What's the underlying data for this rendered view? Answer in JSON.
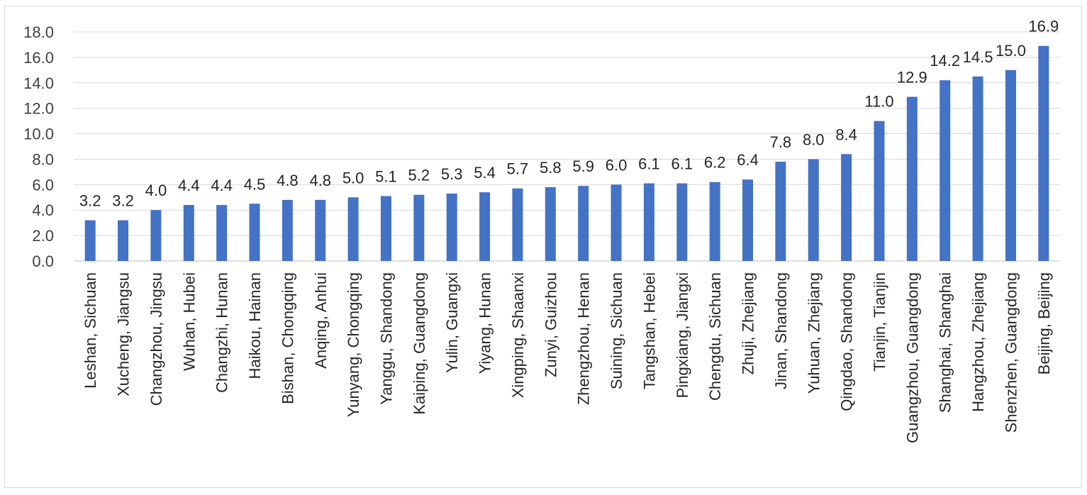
{
  "chart_data": {
    "type": "bar",
    "categories": [
      "Leshan, Sichuan",
      "Xucheng, Jiangsu",
      "Changzhou, Jingsu",
      "Wuhan, Hubei",
      "Changzhi, Hunan",
      "Haikou, Hainan",
      "Bishan, Chongqing",
      "Anqing, Anhui",
      "Yunyang, Chongqing",
      "Yanggu, Shandong",
      "Kaiping, Guangdong",
      "Yulin, Guangxi",
      "Yiyang, Hunan",
      "Xingping, Shaanxi",
      "Zunyi, Guizhou",
      "Zhengzhou, Henan",
      "Suining, Sichuan",
      "Tangshan, Hebei",
      "Pingxiang, Jiangxi",
      "Chengdu, Sichuan",
      "Zhuji, Zhejiang",
      "Jinan, Shandong",
      "Yuhuan, Zhejiang",
      "Qingdao, Shandong",
      "Tianjin, Tianjin",
      "Guangzhou, Guangdong",
      "Shanghai, Shanghai",
      "Hangzhou, Zhejiang",
      "Shenzhen, Guangdong",
      "Beijing, Beijing"
    ],
    "values": [
      3.2,
      3.2,
      4.0,
      4.4,
      4.4,
      4.5,
      4.8,
      4.8,
      5.0,
      5.1,
      5.2,
      5.3,
      5.4,
      5.7,
      5.8,
      5.9,
      6.0,
      6.1,
      6.1,
      6.2,
      6.4,
      7.8,
      8.0,
      8.4,
      11.0,
      12.9,
      14.2,
      14.5,
      15.0,
      16.9
    ],
    "data_labels": [
      "3.2",
      "3.2",
      "4.0",
      "4.4",
      "4.4",
      "4.5",
      "4.8",
      "4.8",
      "5.0",
      "5.1",
      "5.2",
      "5.3",
      "5.4",
      "5.7",
      "5.8",
      "5.9",
      "6.0",
      "6.1",
      "6.1",
      "6.2",
      "6.4",
      "7.8",
      "8.0",
      "8.4",
      "11.0",
      "12.9",
      "14.2",
      "14.5",
      "15.0",
      "16.9"
    ],
    "yticks": [
      "0.0",
      "2.0",
      "4.0",
      "6.0",
      "8.0",
      "10.0",
      "12.0",
      "14.0",
      "16.0",
      "18.0"
    ],
    "ylim": [
      0,
      18
    ],
    "grid": true,
    "legend": "none",
    "title": "",
    "xlabel": "",
    "ylabel": "",
    "colors": {
      "bar": "#4472c4",
      "grid": "#d9d9d9",
      "axis": "#bfbfbf"
    }
  }
}
